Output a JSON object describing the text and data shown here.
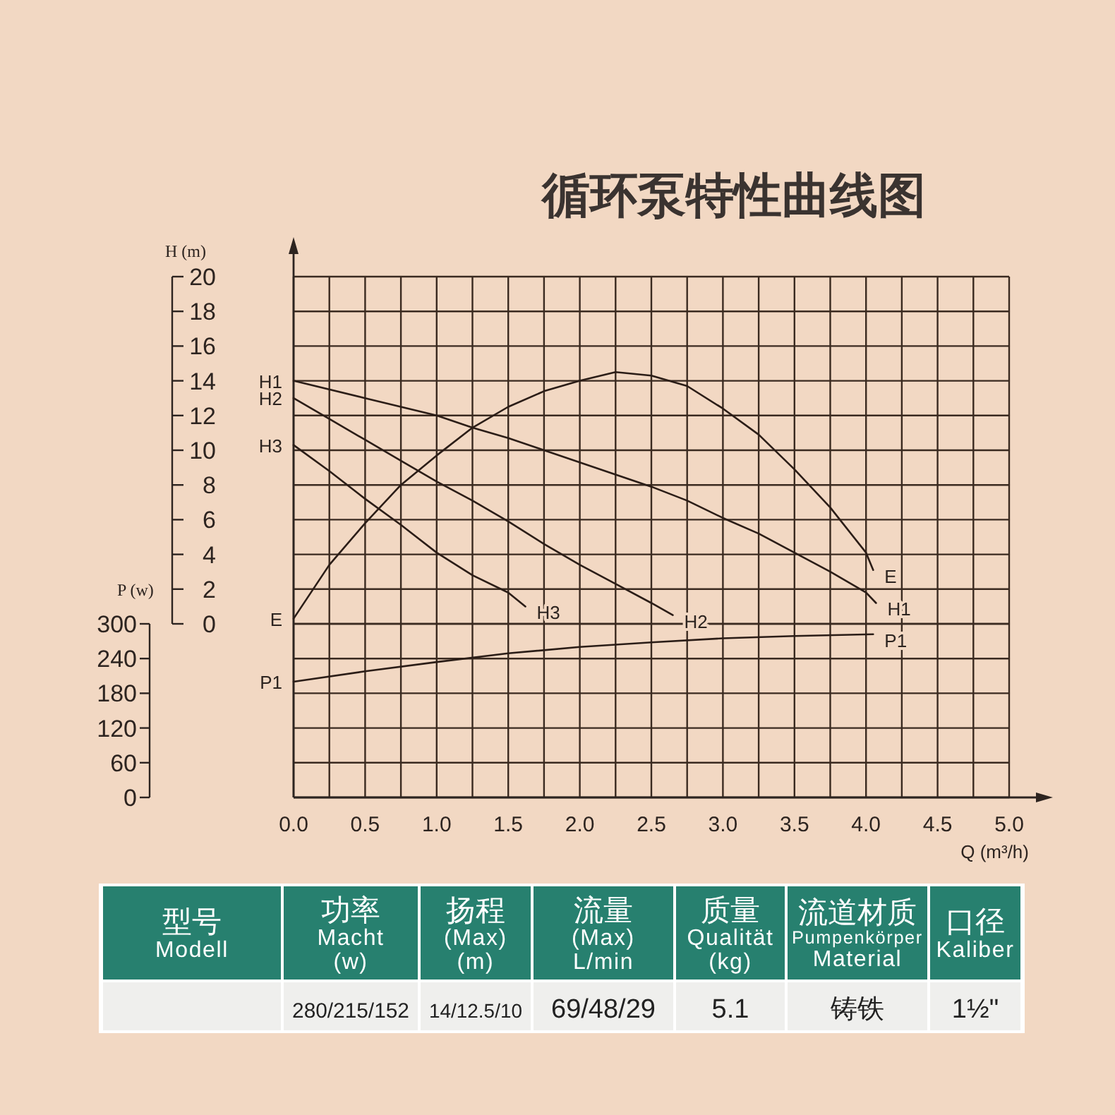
{
  "chart_data": [
    {
      "type": "line",
      "title": "循环泵特性曲线图",
      "xlabel": "Q (m³/h)",
      "ylabel": "H (m)",
      "y2label": "P (w)",
      "xlim": [
        0,
        5
      ],
      "xticks": [
        {
          "value": 0,
          "label": "0.0"
        },
        {
          "value": 0.25,
          "label": null
        },
        {
          "value": 0.5,
          "label": "0.5"
        },
        {
          "value": 0.75,
          "label": null
        },
        {
          "value": 1,
          "label": "1.0"
        },
        {
          "value": 1.25,
          "label": null
        },
        {
          "value": 1.5,
          "label": "1.5"
        },
        {
          "value": 1.75,
          "label": null
        },
        {
          "value": 2,
          "label": "2.0"
        },
        {
          "value": 2.25,
          "label": null
        },
        {
          "value": 2.5,
          "label": "2.5"
        },
        {
          "value": 2.75,
          "label": null
        },
        {
          "value": 3,
          "label": "3.0"
        },
        {
          "value": 3.25,
          "label": null
        },
        {
          "value": 3.5,
          "label": "3.5"
        },
        {
          "value": 3.75,
          "label": null
        },
        {
          "value": 4,
          "label": "4.0"
        },
        {
          "value": 4.25,
          "label": null
        },
        {
          "value": 4.5,
          "label": "4.5"
        },
        {
          "value": 4.75,
          "label": null
        },
        {
          "value": 5,
          "label": "5.0"
        }
      ],
      "ylim": [
        -10,
        20
      ],
      "yticks": [
        0,
        2,
        4,
        6,
        8,
        10,
        12,
        14,
        16,
        18,
        20
      ],
      "y2lim": [
        0,
        900
      ],
      "y2ticks": [
        0,
        60,
        120,
        180,
        240,
        300
      ],
      "grid": true,
      "series": [
        {
          "name": "E",
          "color": "#2b1d17",
          "x": [
            0,
            0.25,
            0.5,
            0.75,
            1,
            1.25,
            1.5,
            1.75,
            2,
            2.25,
            2.5,
            2.75,
            3,
            3.25,
            3.5,
            3.75,
            4,
            4.05
          ],
          "values": [
            0.3,
            3.4,
            5.8,
            8.0,
            9.7,
            11.3,
            12.5,
            13.4,
            14.0,
            14.5,
            14.3,
            13.7,
            12.4,
            10.9,
            8.9,
            6.7,
            4.1,
            3.1
          ]
        },
        {
          "name": "H1",
          "color": "#2b1d17",
          "x": [
            0,
            0.5,
            1,
            1.25,
            1.5,
            1.75,
            2,
            2.25,
            2.5,
            2.75,
            3,
            3.25,
            3.5,
            3.75,
            4,
            4.07
          ],
          "values": [
            14.0,
            13.0,
            12.0,
            11.3,
            10.7,
            10.0,
            9.3,
            8.6,
            7.9,
            7.1,
            6.1,
            5.2,
            4.1,
            3.0,
            1.8,
            1.2
          ]
        },
        {
          "name": "H2",
          "color": "#2b1d17",
          "x": [
            0,
            0.25,
            0.5,
            0.75,
            1,
            1.25,
            1.5,
            1.75,
            2,
            2.25,
            2.5,
            2.65
          ],
          "values": [
            13.0,
            11.8,
            10.6,
            9.4,
            8.2,
            7.1,
            5.9,
            4.6,
            3.4,
            2.3,
            1.2,
            0.5
          ]
        },
        {
          "name": "H3",
          "color": "#2b1d17",
          "x": [
            0,
            0.25,
            0.5,
            0.75,
            1,
            1.25,
            1.5,
            1.62
          ],
          "values": [
            10.3,
            8.8,
            7.2,
            5.7,
            4.1,
            2.8,
            1.8,
            1.0
          ]
        },
        {
          "name": "P1",
          "color": "#2b1d17",
          "axis": "y2",
          "x": [
            0,
            0.5,
            1,
            1.5,
            2,
            2.5,
            3,
            3.5,
            4.05
          ],
          "values": [
            200,
            218,
            234,
            249,
            260,
            268,
            275,
            279,
            282
          ]
        }
      ]
    },
    {
      "type": "other",
      "categories": [
        "型号\nModell",
        "功率\nMacht\n(w)",
        "扬程\n(Max)\n(m)",
        "流量\n(Max)\nL/min",
        "质量\nQualität\n(kg)",
        "流道材质\nPumpenkörper\nMaterial",
        "口径\nKaliber"
      ],
      "annotations": [
        "280/215/152",
        "14/12.5/10",
        "69/48/29",
        "5.1",
        "铸铁",
        "1½\""
      ]
    }
  ]
}
